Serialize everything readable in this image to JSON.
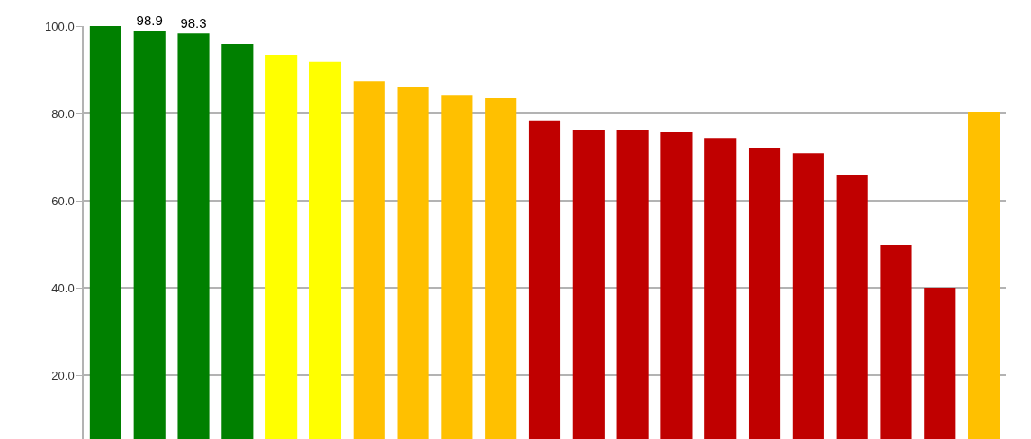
{
  "chart_data": {
    "type": "bar",
    "categories": [
      null,
      null,
      null,
      null,
      null,
      null,
      null,
      null,
      null,
      null,
      null,
      null,
      null,
      null,
      null,
      null,
      null,
      null,
      null,
      null,
      null
    ],
    "values": [
      100.0,
      98.9,
      98.3,
      95.9,
      93.4,
      91.8,
      87.4,
      86.0,
      84.1,
      83.5,
      78.4,
      76.1,
      76.1,
      75.7,
      74.4,
      72.0,
      70.9,
      66.0,
      49.9,
      40.0,
      80.4
    ],
    "colors": [
      "#008000",
      "#008000",
      "#008000",
      "#008000",
      "#ffff00",
      "#ffff00",
      "#ffc000",
      "#ffc000",
      "#ffc000",
      "#ffc000",
      "#c00000",
      "#c00000",
      "#c00000",
      "#c00000",
      "#c00000",
      "#c00000",
      "#c00000",
      "#c00000",
      "#c00000",
      "#c00000",
      "#ffc000"
    ],
    "value_labels": [
      null,
      "98.9",
      "98.3",
      null,
      null,
      null,
      null,
      null,
      null,
      null,
      null,
      null,
      null,
      null,
      null,
      null,
      null,
      null,
      null,
      null,
      null
    ],
    "ylim": [
      5.4,
      100
    ],
    "yticks": [
      {
        "value": 20,
        "label": "20.0"
      },
      {
        "value": 40,
        "label": "40.0"
      },
      {
        "value": 60,
        "label": "60.0"
      },
      {
        "value": 80,
        "label": "80.0"
      },
      {
        "value": 100,
        "label": "100.0"
      }
    ],
    "grid": "y",
    "legend": false
  }
}
